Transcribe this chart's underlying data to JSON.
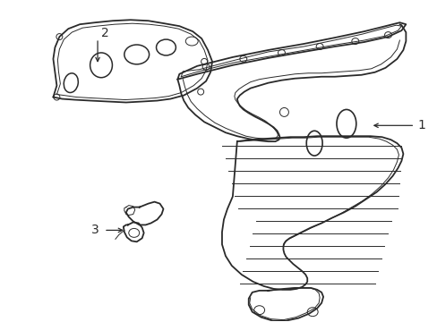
{
  "background_color": "#ffffff",
  "line_color": "#2a2a2a",
  "lw_main": 1.3,
  "lw_thin": 0.7,
  "lw_thick": 1.6,
  "label_fontsize": 10,
  "figsize": [
    4.89,
    3.6
  ],
  "dpi": 100
}
